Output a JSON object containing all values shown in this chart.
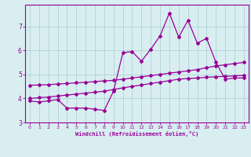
{
  "title": "",
  "xlabel": "Windchill (Refroidissement éolien,°C)",
  "background_color": "#d8eef0",
  "grid_color": "#aaccd0",
  "line_color": "#990099",
  "xlim": [
    -0.5,
    23.5
  ],
  "ylim": [
    3.0,
    7.9
  ],
  "yticks": [
    3,
    4,
    5,
    6,
    7
  ],
  "xticks": [
    0,
    1,
    2,
    3,
    4,
    5,
    6,
    7,
    8,
    9,
    10,
    11,
    12,
    13,
    14,
    15,
    16,
    17,
    18,
    19,
    20,
    21,
    22,
    23
  ],
  "x_main": [
    0,
    1,
    2,
    3,
    4,
    5,
    6,
    7,
    8,
    9,
    10,
    11,
    12,
    13,
    14,
    15,
    16,
    17,
    18,
    19,
    20,
    21,
    22,
    23
  ],
  "y_main": [
    3.9,
    3.85,
    3.9,
    3.95,
    3.6,
    3.6,
    3.6,
    3.55,
    3.5,
    4.3,
    5.9,
    5.95,
    5.55,
    6.05,
    6.6,
    7.55,
    6.55,
    7.25,
    6.3,
    6.5,
    5.5,
    4.8,
    4.85,
    4.85
  ],
  "y_upper": [
    4.55,
    4.56,
    4.57,
    4.6,
    4.62,
    4.65,
    4.67,
    4.7,
    4.73,
    4.75,
    4.8,
    4.85,
    4.9,
    4.95,
    5.0,
    5.05,
    5.1,
    5.15,
    5.2,
    5.28,
    5.35,
    5.4,
    5.45,
    5.5
  ],
  "y_lower": [
    4.0,
    4.03,
    4.06,
    4.1,
    4.14,
    4.18,
    4.22,
    4.26,
    4.3,
    4.37,
    4.44,
    4.5,
    4.56,
    4.62,
    4.68,
    4.74,
    4.8,
    4.83,
    4.85,
    4.88,
    4.9,
    4.92,
    4.94,
    4.96
  ]
}
